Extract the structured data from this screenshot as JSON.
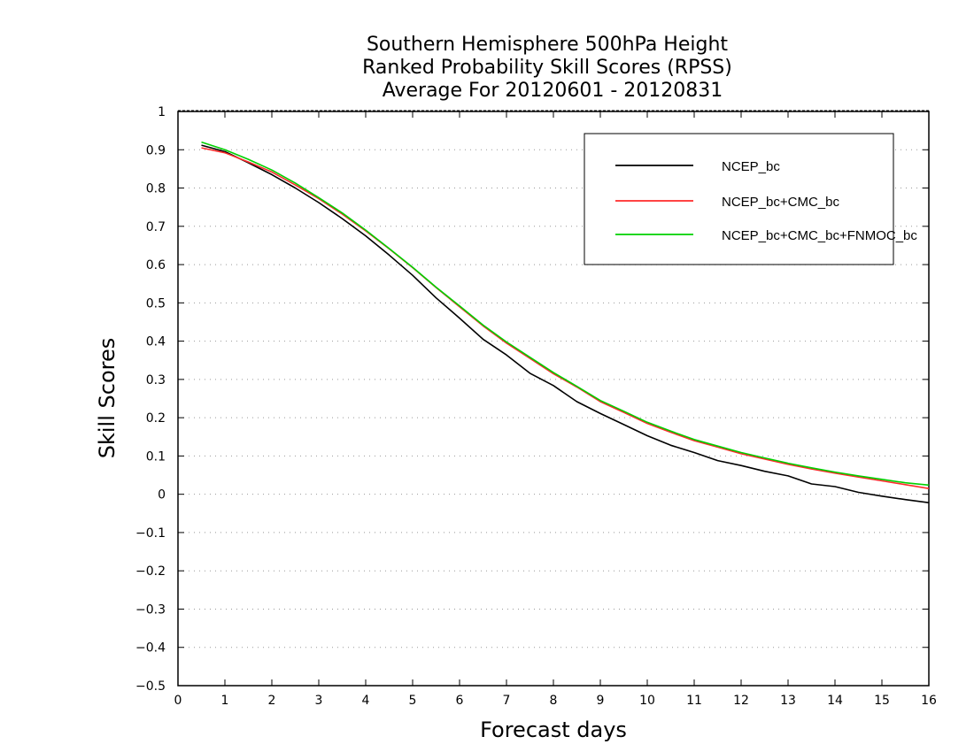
{
  "chart_data": {
    "type": "line",
    "title": "Southern Hemisphere 500hPa Height",
    "subtitle": "Ranked Probability Skill Scores (RPSS)",
    "subtitle2": "Average For 20120601 - 20120831",
    "xlabel": "Forecast days",
    "ylabel": "Skill Scores",
    "xlim": [
      0,
      16
    ],
    "ylim": [
      -0.5,
      1
    ],
    "xticks": [
      "0",
      "1",
      "2",
      "3",
      "4",
      "5",
      "6",
      "7",
      "8",
      "9",
      "10",
      "11",
      "12",
      "13",
      "14",
      "15",
      "16"
    ],
    "yticks": [
      "1",
      "0.9",
      "0.8",
      "0.7",
      "0.6",
      "0.5",
      "0.4",
      "0.3",
      "0.2",
      "0.1",
      "0",
      "−0.1",
      "−0.2",
      "−0.3",
      "−0.4",
      "−0.5"
    ],
    "grid": "horizontal dotted",
    "legend_position": "top-right",
    "x": [
      0.5,
      1,
      1.5,
      2,
      2.5,
      3,
      3.5,
      4,
      4.5,
      5,
      5.5,
      6,
      6.5,
      7,
      7.5,
      8,
      8.5,
      9,
      9.5,
      10,
      10.5,
      11,
      11.5,
      12,
      12.5,
      13,
      13.5,
      14,
      14.5,
      15,
      15.5,
      16
    ],
    "series": [
      {
        "name": "NCEP_bc",
        "color": "#000000",
        "values": [
          0.912,
          0.895,
          0.866,
          0.835,
          0.8,
          0.762,
          0.72,
          0.675,
          0.625,
          0.572,
          0.513,
          0.46,
          0.405,
          0.364,
          0.316,
          0.284,
          0.242,
          0.211,
          0.182,
          0.153,
          0.128,
          0.109,
          0.088,
          0.075,
          0.06,
          0.048,
          0.027,
          0.02,
          0.005,
          -0.005,
          -0.014,
          -0.022
        ]
      },
      {
        "name": "NCEP_bc+CMC_bc",
        "color": "#ff2a2a",
        "values": [
          0.905,
          0.892,
          0.868,
          0.842,
          0.808,
          0.772,
          0.732,
          0.688,
          0.641,
          0.592,
          0.54,
          0.49,
          0.44,
          0.395,
          0.355,
          0.315,
          0.28,
          0.242,
          0.214,
          0.185,
          0.162,
          0.14,
          0.123,
          0.106,
          0.092,
          0.078,
          0.066,
          0.055,
          0.045,
          0.035,
          0.025,
          0.015
        ]
      },
      {
        "name": "NCEP_bc+CMC_bc+FNMOC_bc",
        "color": "#00d000",
        "values": [
          0.92,
          0.9,
          0.875,
          0.847,
          0.813,
          0.775,
          0.735,
          0.69,
          0.642,
          0.593,
          0.541,
          0.492,
          0.442,
          0.398,
          0.358,
          0.318,
          0.282,
          0.245,
          0.217,
          0.188,
          0.165,
          0.143,
          0.126,
          0.109,
          0.095,
          0.081,
          0.069,
          0.058,
          0.048,
          0.039,
          0.03,
          0.024
        ]
      }
    ]
  }
}
